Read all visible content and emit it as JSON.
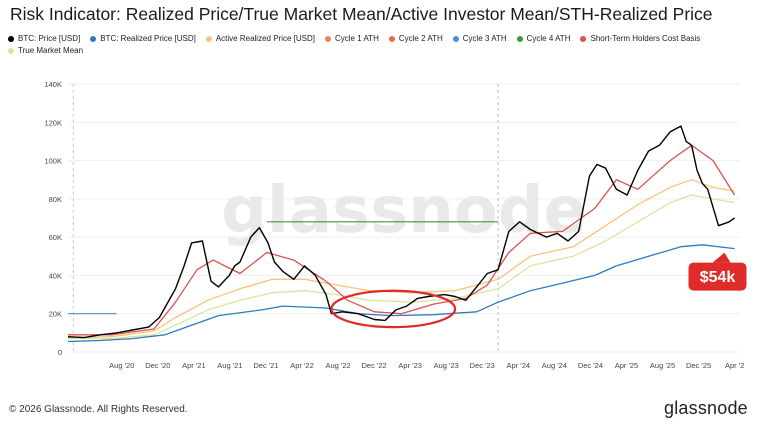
{
  "title": "Risk Indicator: Realized Price/True Market Mean/Active Investor Mean/STH-Realized Price",
  "legend": [
    {
      "label": "BTC: Price [USD]",
      "color": "#000000"
    },
    {
      "label": "BTC: Realized Price [USD]",
      "color": "#2f7bbf"
    },
    {
      "label": "Active Realized Price [USD]",
      "color": "#f8c37c"
    },
    {
      "label": "Cycle 1 ATH",
      "color": "#f08060"
    },
    {
      "label": "Cycle 2 ATH",
      "color": "#e4704e"
    },
    {
      "label": "Cycle 3 ATH",
      "color": "#4f8fd6"
    },
    {
      "label": "Cycle 4 ATH",
      "color": "#3a9a3a"
    },
    {
      "label": "Short-Term Holders Cost Basis",
      "color": "#d9534f"
    },
    {
      "label": "True Market Mean",
      "color": "#d7e6a0"
    }
  ],
  "chart_data": {
    "type": "line",
    "title": "Risk Indicator: Realized Price/True Market Mean/Active Investor Mean/STH-Realized Price",
    "ylim": [
      0,
      140000
    ],
    "y_ticks": [
      "0",
      "20K",
      "40K",
      "60K",
      "80K",
      "100K",
      "120K",
      "140K"
    ],
    "x_ticks": [
      "Aug '20",
      "Dec '20",
      "Apr '21",
      "Aug '21",
      "Dec '21",
      "Apr '22",
      "Aug '22",
      "Dec '22",
      "Apr '23",
      "Aug '23",
      "Dec '23",
      "Apr '24",
      "Aug '24",
      "Dec '24",
      "Apr '25",
      "Aug '25",
      "Dec '25",
      "Apr '2"
    ],
    "x_range": [
      2020.0,
      2026.25
    ],
    "series": [
      {
        "name": "BTC: Price [USD]",
        "color": "#000000",
        "x": [
          2020.0,
          2020.15,
          2020.3,
          2020.45,
          2020.6,
          2020.75,
          2020.85,
          2020.95,
          2021.0,
          2021.08,
          2021.15,
          2021.25,
          2021.33,
          2021.4,
          2021.5,
          2021.55,
          2021.6,
          2021.7,
          2021.78,
          2021.86,
          2021.92,
          2022.0,
          2022.1,
          2022.2,
          2022.3,
          2022.4,
          2022.45,
          2022.55,
          2022.7,
          2022.85,
          2022.95,
          2023.05,
          2023.15,
          2023.25,
          2023.35,
          2023.5,
          2023.6,
          2023.7,
          2023.8,
          2023.9,
          2024.0,
          2024.1,
          2024.2,
          2024.3,
          2024.45,
          2024.55,
          2024.65,
          2024.75,
          2024.85,
          2024.92,
          2025.0,
          2025.1,
          2025.2,
          2025.3,
          2025.4,
          2025.5,
          2025.6,
          2025.7,
          2025.75,
          2025.8,
          2025.85,
          2025.9,
          2025.95,
          2026.05,
          2026.15,
          2026.2
        ],
        "values": [
          8000,
          7500,
          9000,
          10000,
          11500,
          13000,
          18000,
          28000,
          33000,
          45000,
          57000,
          58000,
          37000,
          34000,
          40000,
          45000,
          47000,
          60000,
          65000,
          57000,
          47000,
          42000,
          38000,
          45000,
          40000,
          30000,
          20000,
          21000,
          20000,
          17000,
          16500,
          22000,
          24000,
          28000,
          29000,
          30000,
          29000,
          27000,
          34000,
          41000,
          43000,
          63000,
          68000,
          64000,
          60000,
          62000,
          58000,
          63000,
          92000,
          98000,
          96000,
          85000,
          82000,
          95000,
          105000,
          108000,
          115000,
          118000,
          110000,
          108000,
          95000,
          88000,
          85000,
          66000,
          68000,
          70000
        ]
      },
      {
        "name": "BTC: Realized Price [USD]",
        "color": "#2f7bbf",
        "x": [
          2020.0,
          2020.3,
          2020.6,
          2020.9,
          2021.1,
          2021.4,
          2021.8,
          2022.0,
          2022.4,
          2022.7,
          2023.0,
          2023.4,
          2023.8,
          2024.0,
          2024.3,
          2024.6,
          2024.9,
          2025.1,
          2025.4,
          2025.7,
          2025.9,
          2026.2
        ],
        "values": [
          5500,
          6000,
          7000,
          9000,
          13000,
          19000,
          22000,
          24000,
          23000,
          20000,
          19000,
          19500,
          21000,
          26000,
          32000,
          36000,
          40000,
          45000,
          50000,
          55000,
          56000,
          54000
        ]
      },
      {
        "name": "Active Realized Price [USD]",
        "color": "#f8c37c",
        "x": [
          2020.0,
          2020.4,
          2020.8,
          2021.0,
          2021.3,
          2021.6,
          2021.9,
          2022.2,
          2022.5,
          2022.8,
          2023.2,
          2023.6,
          2024.0,
          2024.3,
          2024.7,
          2025.0,
          2025.3,
          2025.6,
          2025.8,
          2026.0,
          2026.2
        ],
        "values": [
          7500,
          8000,
          11000,
          18000,
          27000,
          33000,
          38000,
          38000,
          35000,
          32000,
          31000,
          32000,
          38000,
          50000,
          55000,
          66000,
          77000,
          86000,
          90000,
          86000,
          84000
        ]
      },
      {
        "name": "Short-Term Holders Cost Basis",
        "color": "#d9534f",
        "x": [
          2020.0,
          2020.4,
          2020.8,
          2021.0,
          2021.2,
          2021.35,
          2021.6,
          2021.85,
          2022.1,
          2022.4,
          2022.6,
          2022.85,
          2023.1,
          2023.4,
          2023.7,
          2023.9,
          2024.1,
          2024.3,
          2024.6,
          2024.9,
          2025.1,
          2025.3,
          2025.6,
          2025.8,
          2026.0,
          2026.2
        ],
        "values": [
          9000,
          9000,
          12000,
          26000,
          43000,
          48000,
          41000,
          52000,
          48000,
          37000,
          27000,
          21000,
          20000,
          25000,
          28000,
          35000,
          52000,
          62000,
          63000,
          75000,
          90000,
          85000,
          100000,
          108000,
          100000,
          82000
        ]
      },
      {
        "name": "True Market Mean",
        "color": "#d7e6a0",
        "x": [
          2020.0,
          2020.4,
          2020.8,
          2021.0,
          2021.3,
          2021.6,
          2021.9,
          2022.2,
          2022.5,
          2022.8,
          2023.2,
          2023.6,
          2024.0,
          2024.3,
          2024.7,
          2025.0,
          2025.3,
          2025.6,
          2025.8,
          2026.0,
          2026.2
        ],
        "values": [
          7000,
          7000,
          9000,
          14000,
          22000,
          27000,
          31000,
          32000,
          30000,
          27000,
          26000,
          28000,
          33000,
          45000,
          50000,
          58000,
          68000,
          78000,
          82000,
          80000,
          78000
        ]
      },
      {
        "name": "Cycle 4 ATH",
        "color": "#3a9a3a",
        "x": [
          2021.85,
          2024.0
        ],
        "values": [
          68000,
          68000
        ]
      },
      {
        "name": "Cycle 3 ATH",
        "color": "#4f8fd6",
        "x": [
          2020.0,
          2020.45
        ],
        "values": [
          20000,
          20000
        ]
      }
    ],
    "annotations": [
      {
        "type": "callout",
        "text": "$54k",
        "x": 2026.05,
        "y": 54000,
        "color": "#e02b2b"
      },
      {
        "type": "ellipse-highlight",
        "x_range": [
          2022.45,
          2023.6
        ],
        "y_range": [
          13000,
          32000
        ],
        "color": "#e02b2b"
      },
      {
        "type": "vertical-dashed",
        "x": 2024.0,
        "color": "#bbbbbb"
      }
    ]
  },
  "watermark": "glassnode",
  "footer": {
    "copyright": "© 2026 Glassnode. All Rights Reserved.",
    "brand": "glassnode"
  }
}
